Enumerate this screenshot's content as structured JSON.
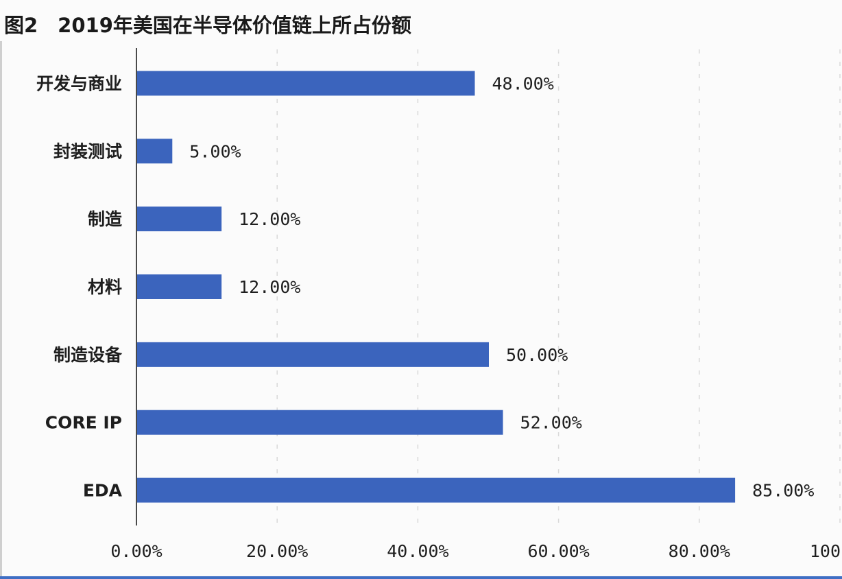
{
  "chart_data": {
    "type": "bar",
    "orientation": "horizontal",
    "title": "图2　2019年美国在半导体价值链上所占份额",
    "categories": [
      "开发与商业",
      "封装测试",
      "制造",
      "材料",
      "制造设备",
      "CORE IP",
      "EDA"
    ],
    "values": [
      48,
      5,
      12,
      12,
      50,
      52,
      85
    ],
    "value_labels": [
      "48.00%",
      "5.00%",
      "12.00%",
      "12.00%",
      "50.00%",
      "52.00%",
      "85.00%"
    ],
    "xlim": [
      0,
      100
    ],
    "x_ticks": [
      0,
      20,
      40,
      60,
      80,
      100
    ],
    "x_tick_labels": [
      "0.00%",
      "20.00%",
      "40.00%",
      "60.00%",
      "80.00%",
      "100"
    ],
    "bar_color": "#3b64bd",
    "grid": true,
    "legend": "none"
  }
}
